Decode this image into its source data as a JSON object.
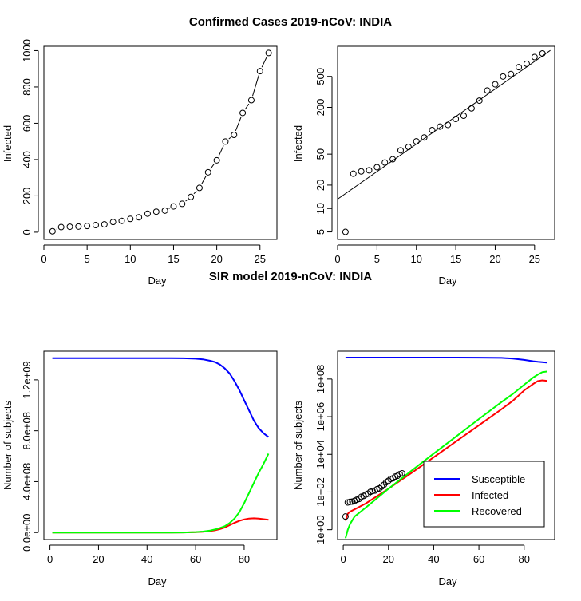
{
  "titles": {
    "top": "Confirmed Cases 2019-nCoV: INDIA",
    "bottom": "SIR model 2019-nCoV: INDIA"
  },
  "chart_data": [
    {
      "type": "line",
      "panel": "top-left",
      "xlabel": "Day",
      "ylabel": "Infected",
      "xlim": [
        1,
        26
      ],
      "ylim": [
        0,
        1000
      ],
      "xticks": [
        0,
        5,
        10,
        15,
        20,
        25
      ],
      "yticks": [
        0,
        200,
        400,
        600,
        800,
        1000
      ],
      "x": [
        1,
        2,
        3,
        4,
        5,
        6,
        7,
        8,
        9,
        10,
        11,
        12,
        13,
        14,
        15,
        16,
        17,
        18,
        19,
        20,
        21,
        22,
        23,
        24,
        25,
        26
      ],
      "values": [
        5,
        28,
        30,
        31,
        34,
        39,
        43,
        56,
        62,
        73,
        82,
        102,
        113,
        119,
        142,
        156,
        194,
        244,
        330,
        396,
        499,
        536,
        657,
        727,
        887,
        987
      ],
      "marker": "open-circle",
      "series_color": "#000000"
    },
    {
      "type": "scatter",
      "panel": "top-right",
      "xlabel": "Day",
      "ylabel": "Infected",
      "xlim": [
        1,
        27
      ],
      "ylog": true,
      "ylim": [
        5,
        987
      ],
      "xticks": [
        0,
        5,
        10,
        15,
        20,
        25
      ],
      "yticks": [
        5,
        10,
        20,
        50,
        200,
        500
      ],
      "x": [
        1,
        2,
        3,
        4,
        5,
        6,
        7,
        8,
        9,
        10,
        11,
        12,
        13,
        14,
        15,
        16,
        17,
        18,
        19,
        20,
        21,
        22,
        23,
        24,
        25,
        26
      ],
      "values": [
        5,
        28,
        30,
        31,
        34,
        39,
        43,
        56,
        62,
        73,
        82,
        102,
        113,
        119,
        142,
        156,
        194,
        244,
        330,
        396,
        499,
        536,
        657,
        727,
        887,
        987
      ],
      "fit_line": {
        "x": [
          0,
          27
        ],
        "y": [
          13.2,
          1080
        ]
      },
      "series_color": "#000000"
    },
    {
      "type": "line",
      "panel": "bottom-left",
      "xlabel": "Day",
      "ylabel": "Number of subjects",
      "xlim": [
        1,
        90
      ],
      "ylim": [
        0,
        1370000000.0
      ],
      "xticks": [
        0,
        20,
        40,
        60,
        80
      ],
      "yticks": [
        0,
        400000000,
        800000000,
        1200000000
      ],
      "ytick_labels": [
        "0.0e+00",
        "4.0e+08",
        "8.0e+08",
        "1.2e+09"
      ],
      "x": [
        1,
        10,
        20,
        30,
        40,
        50,
        55,
        60,
        63,
        66,
        68,
        70,
        72,
        74,
        76,
        78,
        80,
        82,
        84,
        86,
        88,
        90
      ],
      "series": [
        {
          "name": "Susceptible",
          "color": "#0000ff",
          "values": [
            1370000000.0,
            1370000000.0,
            1370000000.0,
            1370000000.0,
            1370000000.0,
            1369800000.0,
            1369000000.0,
            1366000000.0,
            1361000000.0,
            1350000000.0,
            1340000000.0,
            1320000000.0,
            1290000000.0,
            1250000000.0,
            1190000000.0,
            1120000000.0,
            1040000000.0,
            960000000.0,
            880000000.0,
            820000000.0,
            780000000.0,
            750000000.0
          ]
        },
        {
          "name": "Infected",
          "color": "#ff0000",
          "values": [
            0,
            0,
            0,
            0,
            0,
            100000.0,
            500000.0,
            3000000.0,
            6000000.0,
            12000000.0,
            18000000.0,
            27000000.0,
            40000000.0,
            58000000.0,
            76000000.0,
            92000000.0,
            103000000.0,
            110000000.0,
            112000000.0,
            110000000.0,
            105000000.0,
            100000000.0
          ]
        },
        {
          "name": "Recovered",
          "color": "#00ff00",
          "values": [
            0,
            0,
            0,
            0,
            0,
            200000.0,
            1000000.0,
            4000000.0,
            8000000.0,
            16000000.0,
            24000000.0,
            35000000.0,
            50000000.0,
            75000000.0,
            110000000.0,
            160000000.0,
            230000000.0,
            310000000.0,
            390000000.0,
            470000000.0,
            540000000.0,
            620000000.0
          ]
        }
      ]
    },
    {
      "type": "line",
      "panel": "bottom-right",
      "xlabel": "Day",
      "ylabel": "Number of subjects",
      "xlim": [
        1,
        90
      ],
      "ylog": true,
      "ylim": [
        1,
        1370000000.0
      ],
      "xticks": [
        0,
        20,
        40,
        60,
        80
      ],
      "yticks": [
        1,
        100,
        10000,
        1000000,
        100000000
      ],
      "ytick_labels": [
        "1e+00",
        "1e+02",
        "1e+04",
        "1e+06",
        "1e+08"
      ],
      "x": [
        1,
        2,
        3,
        5,
        10,
        20,
        30,
        40,
        50,
        60,
        70,
        75,
        80,
        84,
        86,
        88,
        90
      ],
      "series": [
        {
          "name": "Susceptible",
          "color": "#0000ff",
          "values": [
            1370000000.0,
            1370000000.0,
            1370000000.0,
            1370000000.0,
            1370000000.0,
            1370000000.0,
            1370000000.0,
            1370000000.0,
            1370000000.0,
            1366000000.0,
            1320000000.0,
            1220000000.0,
            1040000000.0,
            880000000.0,
            820000000.0,
            780000000.0,
            750000000.0
          ]
        },
        {
          "name": "Infected",
          "color": "#ff0000",
          "values": [
            3,
            7,
            9,
            12,
            25,
            150,
            1000,
            7000,
            50000,
            350000,
            2500000.0,
            7000000.0,
            25000000.0,
            55000000.0,
            78000000.0,
            85000000.0,
            80000000.0
          ]
        },
        {
          "name": "Recovered",
          "color": "#00ff00",
          "values": [
            0.35,
            1,
            2,
            5,
            15,
            150,
            1300,
            11000,
            90000,
            750000,
            6000000.0,
            16000000.0,
            50000000.0,
            120000000.0,
            170000000.0,
            230000000.0,
            250000000.0
          ]
        }
      ],
      "observed": {
        "x": [
          1,
          2,
          3,
          4,
          5,
          6,
          7,
          8,
          9,
          10,
          11,
          12,
          13,
          14,
          15,
          16,
          17,
          18,
          19,
          20,
          21,
          22,
          23,
          24,
          25,
          26
        ],
        "values": [
          5,
          28,
          30,
          31,
          34,
          39,
          43,
          56,
          62,
          73,
          82,
          102,
          113,
          119,
          142,
          156,
          194,
          244,
          330,
          396,
          499,
          536,
          657,
          727,
          887,
          987
        ]
      },
      "legend": {
        "position": "bottom-right",
        "entries": [
          {
            "label": "Susceptible",
            "color": "#0000ff"
          },
          {
            "label": "Infected",
            "color": "#ff0000"
          },
          {
            "label": "Recovered",
            "color": "#00ff00"
          }
        ]
      }
    }
  ]
}
